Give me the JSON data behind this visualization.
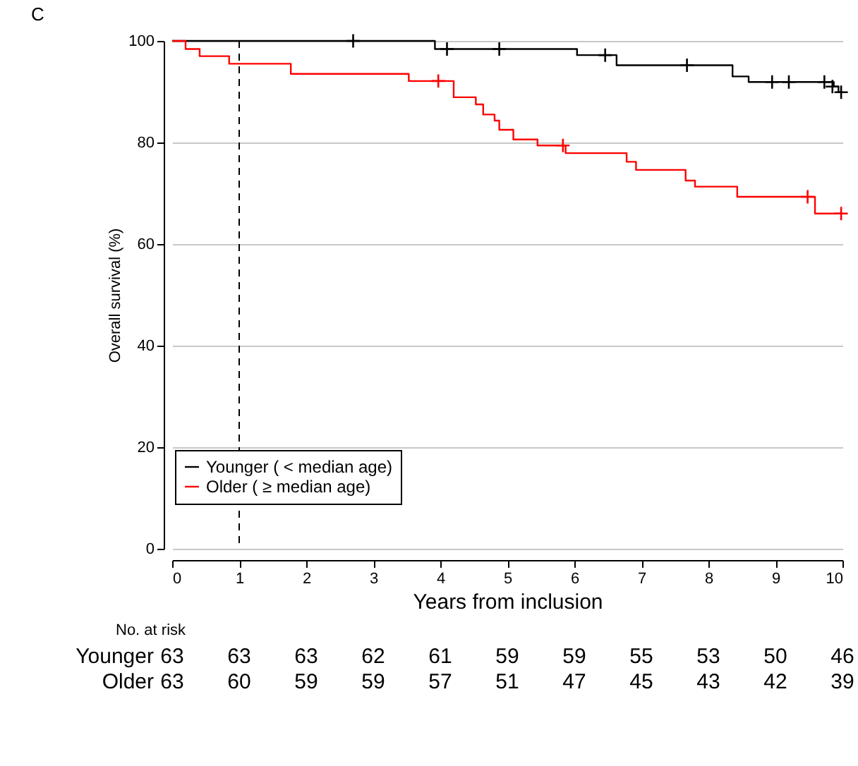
{
  "chart_data": {
    "type": "step",
    "title": "C",
    "xlabel": "Years from inclusion",
    "ylabel": "Overall survival (%)",
    "xlim": [
      0,
      10
    ],
    "xticks": [
      0,
      1,
      2,
      3,
      4,
      5,
      6,
      7,
      8,
      9,
      10
    ],
    "ylim": [
      0,
      100
    ],
    "yticks": [
      0,
      20,
      40,
      60,
      80,
      100
    ],
    "grid": "y",
    "legend": "bottom left",
    "line_style": "solid",
    "series": [
      {
        "name": "Younger ( < median age)",
        "color": "#000000",
        "x": [
          0,
          3.92,
          6.04,
          6.63,
          8.36,
          8.6,
          9.87,
          9.94,
          10
        ],
        "values": [
          100,
          98.4,
          97.2,
          95.2,
          93.0,
          91.9,
          91.0,
          89.9,
          89.9
        ]
      },
      {
        "name": "Older ( ≥ median age)",
        "color": "#ff0000",
        "x": [
          0,
          0.2,
          0.41,
          0.85,
          1.77,
          3.53,
          4.2,
          4.53,
          4.64,
          4.81,
          4.88,
          5.09,
          5.45,
          5.87,
          6.78,
          6.92,
          7.66,
          7.8,
          8.43,
          9.59,
          10
        ],
        "values": [
          100,
          98.4,
          97.0,
          95.5,
          93.5,
          92.1,
          88.9,
          87.5,
          85.5,
          84.3,
          82.5,
          80.6,
          79.4,
          77.9,
          76.2,
          74.6,
          72.5,
          71.3,
          69.3,
          66.0,
          66.0
        ]
      },
      {
        "type": "scatter",
        "marker": "cross",
        "color": "#000000",
        "x": [
          2.7,
          4.1,
          4.88,
          6.46,
          7.68,
          8.95,
          9.2,
          9.73,
          9.85,
          9.98
        ],
        "values": [
          100,
          98.4,
          98.4,
          97.2,
          95.2,
          91.9,
          91.9,
          91.9,
          91.0,
          89.9
        ]
      },
      {
        "type": "scatter",
        "marker": "cross",
        "color": "#ff0000",
        "x": [
          3.97,
          5.83,
          9.48,
          9.98
        ],
        "values": [
          92.1,
          79.4,
          69.3,
          66.0
        ]
      }
    ],
    "ref_lines": [
      {
        "axis": "x",
        "value": 1,
        "color": "#000000",
        "line_style": "dashed"
      }
    ],
    "annotations": [
      "No. at risk",
      "Younger 63 63 63 62 61 59 59 55 53 50 46",
      "Older 63 60 59 59 57 51 47 45 43 42 39"
    ]
  }
}
